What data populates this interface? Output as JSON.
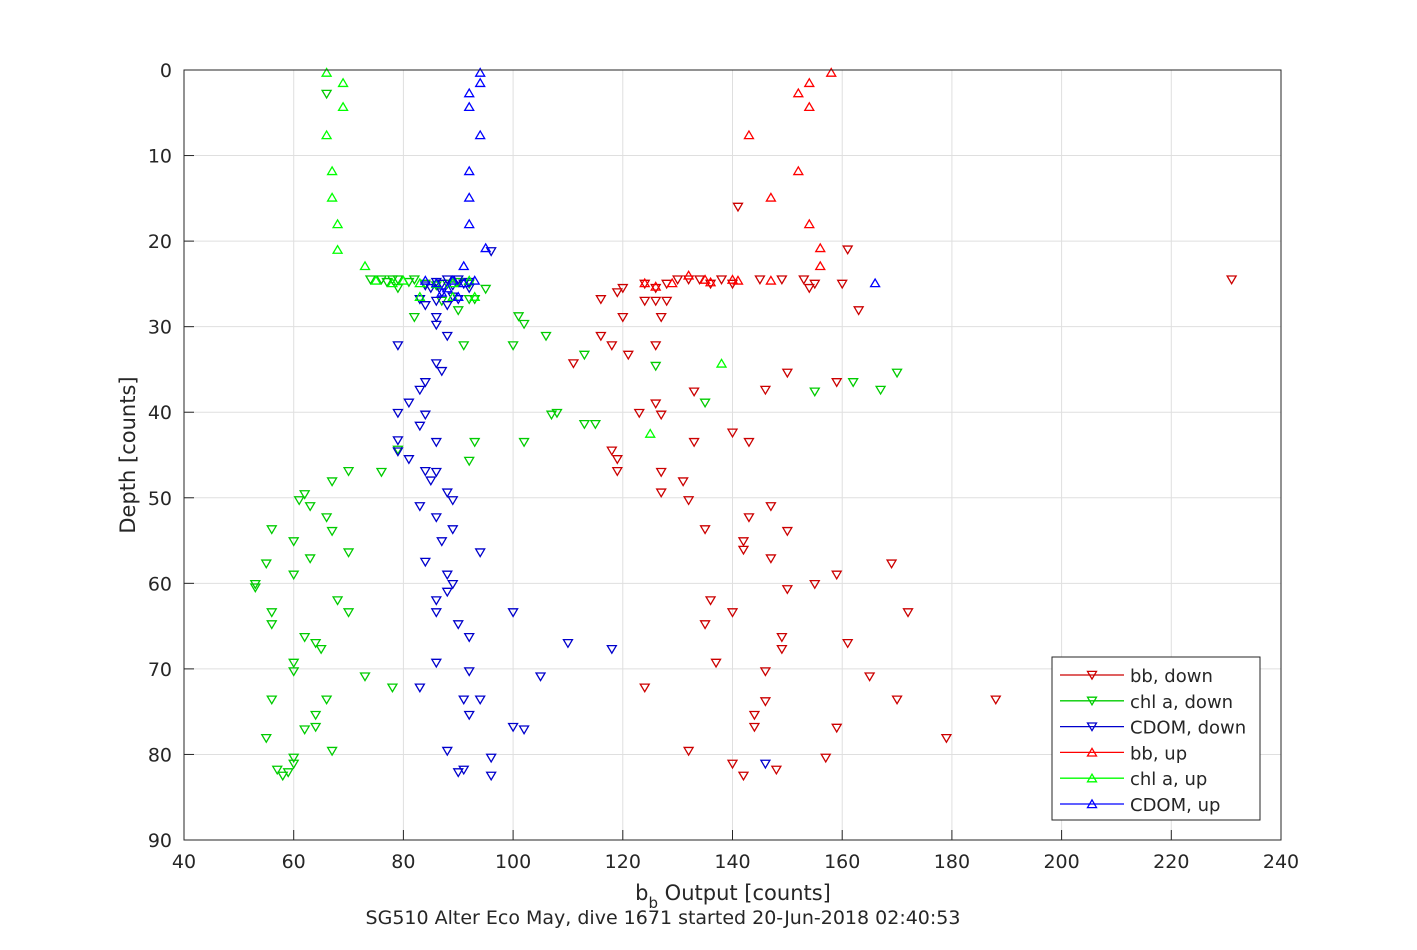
{
  "chart_data": {
    "type": "scatter",
    "xlabel_main": "b",
    "xlabel_sub": "b",
    "xlabel_rest": " Output [counts]",
    "ylabel": "Depth [counts]",
    "caption": "SG510 Alter Eco May, dive 1671 started 20-Jun-2018 02:40:53",
    "xlim": [
      40,
      240
    ],
    "ylim": [
      0,
      90
    ],
    "y_reversed": true,
    "grid": true,
    "legend_position": "bottom-right",
    "x_ticks": [
      "40",
      "60",
      "80",
      "100",
      "120",
      "140",
      "160",
      "180",
      "200",
      "220",
      "240"
    ],
    "y_ticks": [
      "0",
      "10",
      "20",
      "30",
      "40",
      "50",
      "60",
      "70",
      "80",
      "90"
    ],
    "series": [
      {
        "name": "bb, down",
        "color": "#cc0000",
        "marker": "triangle-down",
        "points": [
          [
            141,
            16
          ],
          [
            161,
            21
          ],
          [
            153,
            24.5
          ],
          [
            231,
            24.5
          ],
          [
            160,
            25
          ],
          [
            154,
            25.5
          ],
          [
            149,
            24.5
          ],
          [
            145,
            24.5
          ],
          [
            140,
            25
          ],
          [
            138,
            24.5
          ],
          [
            136,
            25
          ],
          [
            134,
            24.5
          ],
          [
            132,
            24.5
          ],
          [
            130,
            24.5
          ],
          [
            128,
            25
          ],
          [
            126,
            25.5
          ],
          [
            124,
            25
          ],
          [
            120,
            25.5
          ],
          [
            119,
            26
          ],
          [
            116,
            26.8
          ],
          [
            120,
            28.9
          ],
          [
            126,
            27
          ],
          [
            128,
            27
          ],
          [
            124,
            27
          ],
          [
            127,
            28.9
          ],
          [
            163,
            28.1
          ],
          [
            126,
            32.2
          ],
          [
            116,
            31.1
          ],
          [
            121,
            33.3
          ],
          [
            118,
            32.2
          ],
          [
            111,
            34.3
          ],
          [
            155,
            25
          ],
          [
            159,
            36.5
          ],
          [
            150,
            35.4
          ],
          [
            146,
            37.4
          ],
          [
            133,
            37.6
          ],
          [
            126,
            39
          ],
          [
            123,
            40.1
          ],
          [
            127,
            40.3
          ],
          [
            140,
            42.4
          ],
          [
            133,
            43.5
          ],
          [
            143,
            43.5
          ],
          [
            118,
            44.5
          ],
          [
            119,
            45.5
          ],
          [
            119,
            46.9
          ],
          [
            127,
            47
          ],
          [
            131,
            48.1
          ],
          [
            127,
            49.4
          ],
          [
            132,
            50.3
          ],
          [
            147,
            51
          ],
          [
            143,
            52.3
          ],
          [
            142,
            55.1
          ],
          [
            142,
            56.1
          ],
          [
            135,
            53.7
          ],
          [
            150,
            53.9
          ],
          [
            147,
            57.1
          ],
          [
            169,
            57.7
          ],
          [
            159,
            59
          ],
          [
            155,
            60.1
          ],
          [
            150,
            60.7
          ],
          [
            136,
            62
          ],
          [
            172,
            63.4
          ],
          [
            140,
            63.4
          ],
          [
            135,
            64.8
          ],
          [
            161,
            67
          ],
          [
            149,
            66.3
          ],
          [
            149,
            67.7
          ],
          [
            137,
            69.3
          ],
          [
            146,
            70.3
          ],
          [
            165,
            70.9
          ],
          [
            124,
            72.2
          ],
          [
            188,
            73.6
          ],
          [
            170,
            73.6
          ],
          [
            146,
            73.8
          ],
          [
            144,
            75.4
          ],
          [
            144,
            76.8
          ],
          [
            159,
            76.9
          ],
          [
            179,
            78.1
          ],
          [
            132,
            79.6
          ],
          [
            157,
            80.4
          ],
          [
            140,
            81.1
          ],
          [
            142,
            82.5
          ],
          [
            148,
            81.8
          ]
        ]
      },
      {
        "name": "chl a, down",
        "color": "#00cc00",
        "marker": "triangle-down",
        "points": [
          [
            66,
            2.8
          ],
          [
            74,
            24.5
          ],
          [
            76,
            24.5
          ],
          [
            77,
            24.8
          ],
          [
            78,
            24.5
          ],
          [
            79,
            24.5
          ],
          [
            81,
            24.8
          ],
          [
            79,
            25.5
          ],
          [
            82,
            24.5
          ],
          [
            84,
            25
          ],
          [
            86,
            25.2
          ],
          [
            88,
            25
          ],
          [
            90,
            24.8
          ],
          [
            92,
            25
          ],
          [
            95,
            25.6
          ],
          [
            83,
            26.8
          ],
          [
            87,
            27
          ],
          [
            92,
            26.8
          ],
          [
            93,
            26.8
          ],
          [
            90,
            28.1
          ],
          [
            82,
            28.9
          ],
          [
            101,
            28.8
          ],
          [
            102,
            29.7
          ],
          [
            91,
            32.2
          ],
          [
            100,
            32.2
          ],
          [
            106,
            31.1
          ],
          [
            113,
            33.3
          ],
          [
            126,
            34.6
          ],
          [
            135,
            38.9
          ],
          [
            155,
            37.6
          ],
          [
            162,
            36.5
          ],
          [
            167,
            37.4
          ],
          [
            170,
            35.4
          ],
          [
            107,
            40.3
          ],
          [
            108,
            40.1
          ],
          [
            113,
            41.4
          ],
          [
            115,
            41.4
          ],
          [
            93,
            43.5
          ],
          [
            102,
            43.5
          ],
          [
            79,
            44.4
          ],
          [
            92,
            45.7
          ],
          [
            70,
            46.9
          ],
          [
            76,
            47
          ],
          [
            67,
            48.1
          ],
          [
            62,
            49.6
          ],
          [
            61,
            50.3
          ],
          [
            63,
            51
          ],
          [
            66,
            52.3
          ],
          [
            56,
            53.7
          ],
          [
            67,
            53.9
          ],
          [
            60,
            55.1
          ],
          [
            70,
            56.4
          ],
          [
            63,
            57.1
          ],
          [
            55,
            57.7
          ],
          [
            60,
            59
          ],
          [
            53,
            60.1
          ],
          [
            53,
            60.5
          ],
          [
            68,
            62
          ],
          [
            56,
            63.4
          ],
          [
            70,
            63.4
          ],
          [
            56,
            64.8
          ],
          [
            62,
            66.3
          ],
          [
            64,
            67
          ],
          [
            65,
            67.7
          ],
          [
            60,
            69.3
          ],
          [
            60,
            70.3
          ],
          [
            73,
            70.9
          ],
          [
            78,
            72.2
          ],
          [
            56,
            73.6
          ],
          [
            66,
            73.6
          ],
          [
            64,
            75.4
          ],
          [
            62,
            77.1
          ],
          [
            64,
            76.8
          ],
          [
            55,
            78.1
          ],
          [
            67,
            79.6
          ],
          [
            60,
            80.4
          ],
          [
            60,
            81.1
          ],
          [
            57,
            81.8
          ],
          [
            58,
            82.5
          ],
          [
            59,
            82.1
          ]
        ]
      },
      {
        "name": "CDOM, down",
        "color": "#0000cc",
        "marker": "triangle-down",
        "points": [
          [
            96,
            21.2
          ],
          [
            88,
            24.5
          ],
          [
            90,
            24.5
          ],
          [
            86,
            24.8
          ],
          [
            84,
            25.2
          ],
          [
            87,
            25
          ],
          [
            89,
            25.2
          ],
          [
            91,
            25
          ],
          [
            92,
            24.8
          ],
          [
            85,
            25.5
          ],
          [
            87,
            26
          ],
          [
            89,
            26.5
          ],
          [
            83,
            26.8
          ],
          [
            86,
            27
          ],
          [
            90,
            26.8
          ],
          [
            84,
            27.5
          ],
          [
            88,
            27.5
          ],
          [
            86,
            28.9
          ],
          [
            86,
            29.8
          ],
          [
            92,
            25.5
          ],
          [
            79,
            32.2
          ],
          [
            88,
            31.1
          ],
          [
            86,
            34.3
          ],
          [
            87,
            35.2
          ],
          [
            84,
            36.5
          ],
          [
            83,
            37.4
          ],
          [
            81,
            38.9
          ],
          [
            79,
            40.1
          ],
          [
            84,
            40.3
          ],
          [
            83,
            41.6
          ],
          [
            79,
            43.3
          ],
          [
            86,
            43.5
          ],
          [
            79,
            44.6
          ],
          [
            81,
            45.5
          ],
          [
            84,
            46.9
          ],
          [
            86,
            47
          ],
          [
            85,
            48
          ],
          [
            88,
            49.4
          ],
          [
            89,
            50.3
          ],
          [
            83,
            51
          ],
          [
            86,
            52.3
          ],
          [
            89,
            53.7
          ],
          [
            87,
            55.1
          ],
          [
            94,
            56.4
          ],
          [
            84,
            57.5
          ],
          [
            88,
            59
          ],
          [
            89,
            60.1
          ],
          [
            88,
            61
          ],
          [
            86,
            62
          ],
          [
            86,
            63.4
          ],
          [
            90,
            64.8
          ],
          [
            92,
            66.3
          ],
          [
            100,
            63.4
          ],
          [
            110,
            67
          ],
          [
            118,
            67.7
          ],
          [
            86,
            69.3
          ],
          [
            92,
            70.3
          ],
          [
            105,
            70.9
          ],
          [
            83,
            72.2
          ],
          [
            91,
            73.6
          ],
          [
            94,
            73.6
          ],
          [
            92,
            75.4
          ],
          [
            100,
            76.8
          ],
          [
            102,
            77.1
          ],
          [
            146,
            81.1
          ],
          [
            88,
            79.6
          ],
          [
            96,
            80.4
          ],
          [
            91,
            81.8
          ],
          [
            90,
            82.1
          ],
          [
            96,
            82.5
          ]
        ]
      },
      {
        "name": "bb, up",
        "color": "#ff0000",
        "marker": "triangle-up",
        "points": [
          [
            158,
            0.3
          ],
          [
            154,
            1.5
          ],
          [
            152,
            2.7
          ],
          [
            154,
            4.3
          ],
          [
            143,
            7.6
          ],
          [
            152,
            11.8
          ],
          [
            147,
            14.9
          ],
          [
            154,
            18
          ],
          [
            156,
            20.8
          ],
          [
            156,
            22.9
          ],
          [
            140,
            24.5
          ],
          [
            135,
            24.5
          ],
          [
            132,
            24
          ],
          [
            129,
            24.9
          ],
          [
            126,
            25.3
          ],
          [
            124,
            24.9
          ],
          [
            141,
            24.6
          ],
          [
            136,
            24.8
          ],
          [
            147,
            24.6
          ]
        ]
      },
      {
        "name": "chl a, up",
        "color": "#00ff00",
        "marker": "triangle-up",
        "points": [
          [
            66,
            0.3
          ],
          [
            69,
            1.5
          ],
          [
            69,
            4.3
          ],
          [
            66,
            7.6
          ],
          [
            67,
            11.8
          ],
          [
            67,
            14.9
          ],
          [
            68,
            18
          ],
          [
            68,
            21
          ],
          [
            73,
            22.9
          ],
          [
            75,
            24.6
          ],
          [
            78,
            24.9
          ],
          [
            80,
            24.6
          ],
          [
            83,
            24.9
          ],
          [
            86,
            25
          ],
          [
            89,
            24.9
          ],
          [
            92,
            24.6
          ],
          [
            83,
            26.5
          ],
          [
            89,
            26.5
          ],
          [
            93,
            26.5
          ],
          [
            138,
            34.3
          ],
          [
            125,
            42.5
          ]
        ]
      },
      {
        "name": "CDOM, up",
        "color": "#0000ff",
        "marker": "triangle-up",
        "points": [
          [
            94,
            0.3
          ],
          [
            94,
            1.5
          ],
          [
            92,
            2.7
          ],
          [
            92,
            4.3
          ],
          [
            94,
            7.6
          ],
          [
            92,
            11.8
          ],
          [
            92,
            14.9
          ],
          [
            92,
            18
          ],
          [
            95,
            20.8
          ],
          [
            91,
            22.9
          ],
          [
            84,
            24.6
          ],
          [
            86,
            24.9
          ],
          [
            89,
            24.6
          ],
          [
            91,
            24.9
          ],
          [
            93,
            24.6
          ],
          [
            88,
            25.5
          ],
          [
            87,
            26
          ],
          [
            90,
            26.5
          ],
          [
            166,
            24.9
          ]
        ]
      }
    ]
  }
}
